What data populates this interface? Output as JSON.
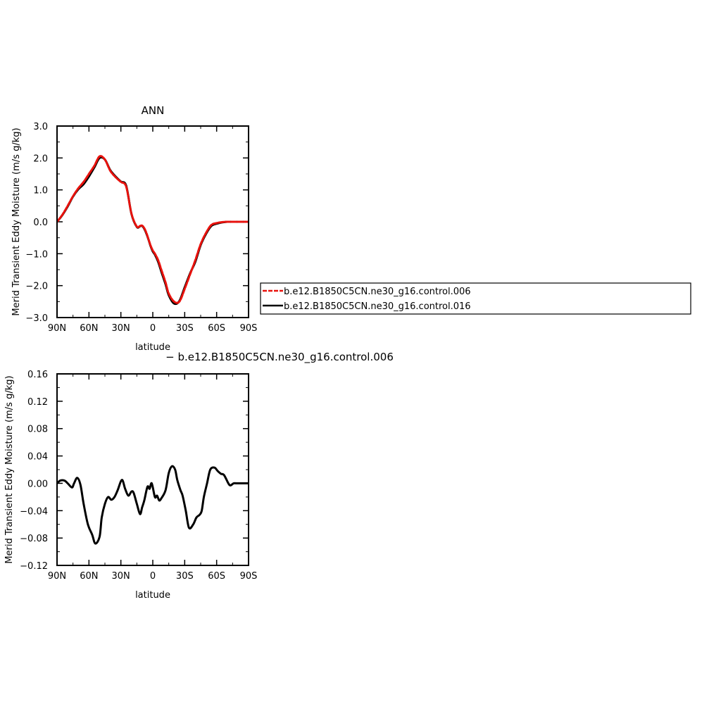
{
  "chart_data": [
    {
      "type": "line",
      "title": "ANN",
      "xlabel": "latitude",
      "ylabel": "Merid Transient Eddy Moisture (m/s g/kg)",
      "xlim": [
        90,
        -90
      ],
      "ylim": [
        -3.0,
        3.0
      ],
      "xticks": [
        90,
        60,
        30,
        0,
        -30,
        -60,
        -90
      ],
      "xtick_labels": [
        "90N",
        "60N",
        "30N",
        "0",
        "30S",
        "60S",
        "90S"
      ],
      "yticks": [
        3.0,
        2.0,
        1.0,
        0.0,
        -1.0,
        -2.0,
        -3.0
      ],
      "ytick_labels": [
        "3.0",
        "2.0",
        "1.0",
        "0.0",
        "−1.0",
        "−2.0",
        "−3.0"
      ],
      "grid": false,
      "legend": "right, outside plot",
      "x": [
        90,
        85,
        80,
        75,
        70,
        65,
        60,
        55,
        50,
        45,
        40,
        35,
        30,
        25,
        20,
        15,
        12,
        10,
        8,
        6,
        4,
        2,
        0,
        -2,
        -5,
        -8,
        -12,
        -15,
        -20,
        -25,
        -30,
        -35,
        -40,
        -45,
        -50,
        -55,
        -60,
        -65,
        -70,
        -75,
        -80,
        -85,
        -90
      ],
      "series": [
        {
          "name": "b.e12.B1850C5CN.ne30_g16.control.006",
          "color": "#e8120d",
          "dash": "dashed",
          "values": [
            0.0,
            0.22,
            0.5,
            0.8,
            1.05,
            1.25,
            1.5,
            1.75,
            2.05,
            1.95,
            1.6,
            1.4,
            1.25,
            1.1,
            0.25,
            -0.15,
            -0.13,
            -0.12,
            -0.2,
            -0.35,
            -0.55,
            -0.75,
            -0.9,
            -1.0,
            -1.2,
            -1.5,
            -1.9,
            -2.25,
            -2.5,
            -2.5,
            -2.1,
            -1.65,
            -1.2,
            -0.7,
            -0.35,
            -0.1,
            -0.04,
            -0.01,
            0.0,
            0.0,
            0.0,
            0.0,
            0.0
          ]
        },
        {
          "name": "b.e12.B1850C5CN.ne30_g16.control.016",
          "color": "#000000",
          "dash": "solid",
          "values": [
            0.0,
            0.21,
            0.48,
            0.79,
            1.02,
            1.18,
            1.42,
            1.7,
            2.0,
            1.95,
            1.62,
            1.42,
            1.26,
            1.13,
            0.24,
            -0.16,
            -0.14,
            -0.13,
            -0.22,
            -0.37,
            -0.56,
            -0.77,
            -0.93,
            -1.03,
            -1.25,
            -1.56,
            -1.96,
            -2.3,
            -2.56,
            -2.48,
            -2.05,
            -1.62,
            -1.25,
            -0.73,
            -0.38,
            -0.13,
            -0.06,
            -0.02,
            0.0,
            0.0,
            0.0,
            0.0,
            0.0
          ]
        }
      ]
    },
    {
      "type": "line",
      "title": "− b.e12.B1850C5CN.ne30_g16.control.006",
      "xlabel": "latitude",
      "ylabel": "Merid Transient Eddy Moisture (m/s g/kg)",
      "xlim": [
        90,
        -90
      ],
      "ylim": [
        -0.12,
        0.16
      ],
      "xticks": [
        90,
        60,
        30,
        0,
        -30,
        -60,
        -90
      ],
      "xtick_labels": [
        "90N",
        "60N",
        "30N",
        "0",
        "30S",
        "60S",
        "90S"
      ],
      "yticks": [
        0.16,
        0.12,
        0.08,
        0.04,
        0.0,
        -0.04,
        -0.08,
        -0.12
      ],
      "ytick_labels": [
        "0.16",
        "0.12",
        "0.08",
        "0.04",
        "0.00",
        "−0.04",
        "−0.08",
        "−0.12"
      ],
      "grid": false,
      "x": [
        90,
        87,
        83,
        80,
        76,
        74,
        71,
        68,
        65,
        61,
        57,
        54,
        50,
        48,
        45,
        42,
        39,
        36,
        33,
        29,
        26,
        23,
        20,
        18,
        15,
        12,
        10,
        8,
        5,
        3,
        1,
        -2,
        -4,
        -6,
        -8,
        -12,
        -15,
        -18,
        -21,
        -23,
        -26,
        -28,
        -31,
        -34,
        -38,
        -41,
        -44,
        -46,
        -48,
        -51,
        -54,
        -58,
        -61,
        -64,
        -67,
        -71,
        -73,
        -76,
        -79,
        -82,
        -85,
        -88,
        -90
      ],
      "series": [
        {
          "name": "",
          "color": "#000000",
          "dash": "solid",
          "values": [
            0.0,
            0.004,
            0.004,
            0.0,
            -0.006,
            0.0,
            0.008,
            -0.002,
            -0.03,
            -0.06,
            -0.075,
            -0.088,
            -0.078,
            -0.05,
            -0.03,
            -0.02,
            -0.024,
            -0.02,
            -0.01,
            0.005,
            -0.008,
            -0.018,
            -0.012,
            -0.014,
            -0.03,
            -0.045,
            -0.035,
            -0.025,
            -0.005,
            -0.008,
            0.0,
            -0.02,
            -0.018,
            -0.025,
            -0.022,
            -0.01,
            0.015,
            0.025,
            0.02,
            0.005,
            -0.01,
            -0.018,
            -0.04,
            -0.065,
            -0.06,
            -0.05,
            -0.046,
            -0.04,
            -0.02,
            0.0,
            0.02,
            0.023,
            0.018,
            0.014,
            0.012,
            0.0,
            -0.003,
            0.0,
            0.0,
            0.0,
            0.0,
            0.0,
            0.0
          ]
        }
      ]
    }
  ]
}
